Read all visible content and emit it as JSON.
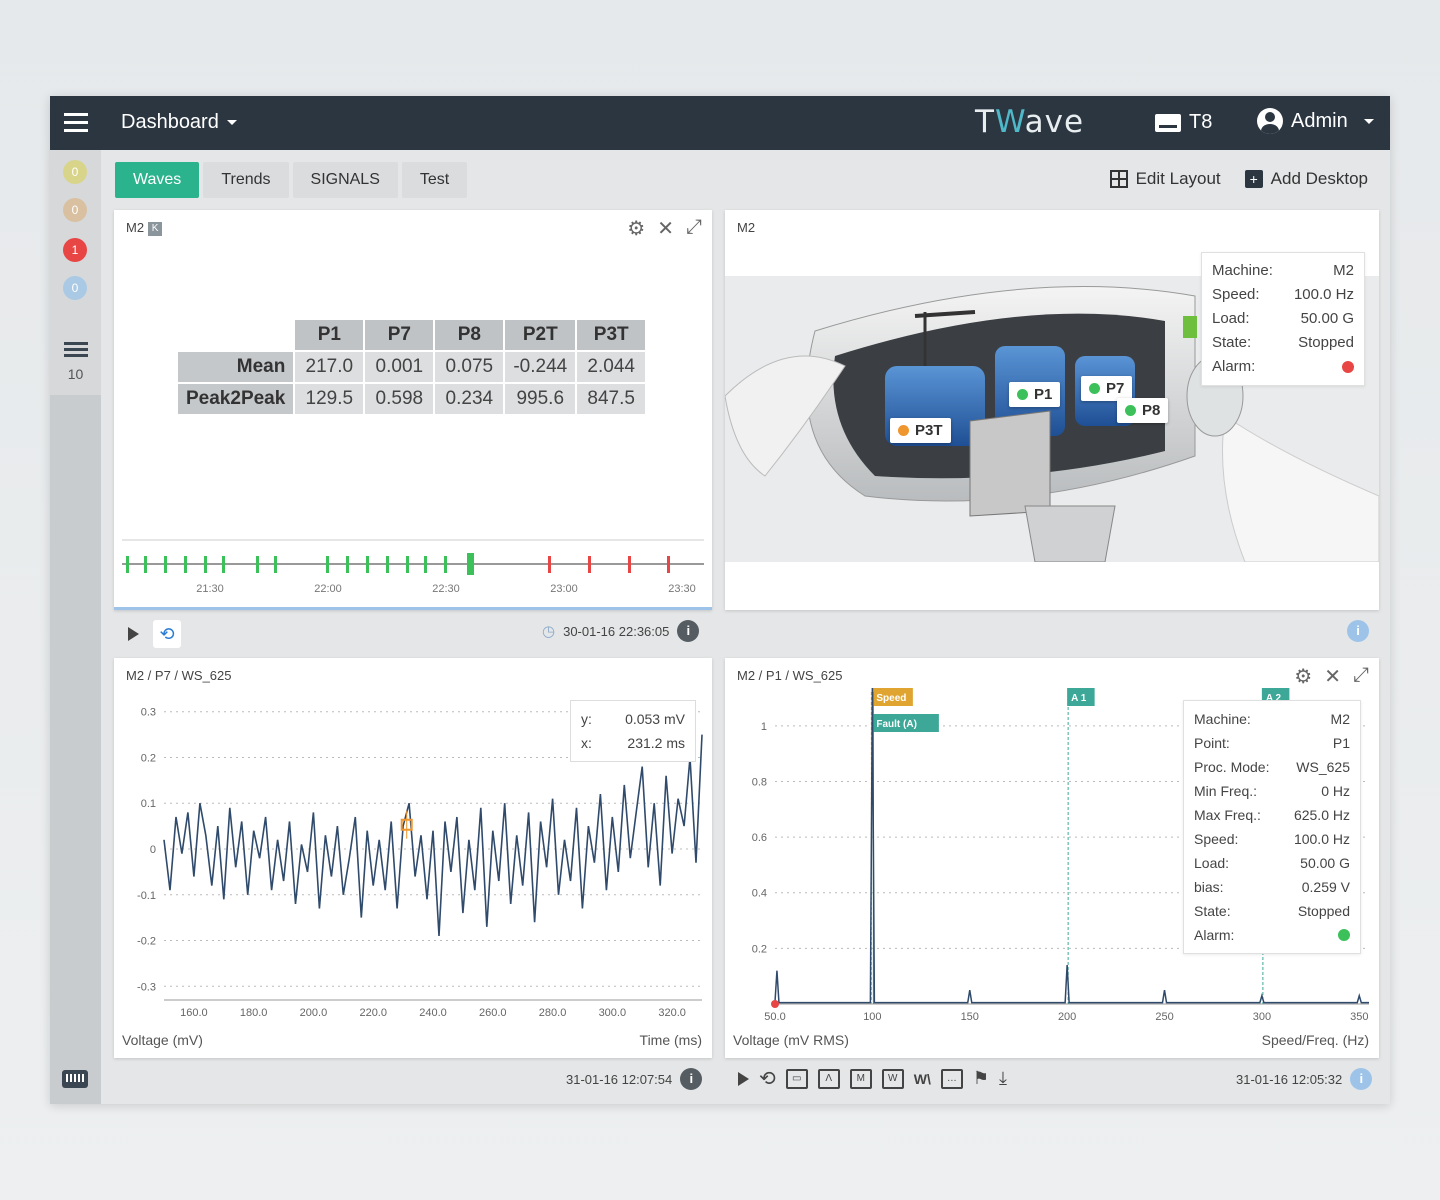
{
  "topbar": {
    "dashboard_label": "Dashboard",
    "logo_prefix": "T",
    "logo_w": "W",
    "logo_suffix": "ave",
    "device_label": "T8",
    "user_label": "Admin"
  },
  "leftbar": {
    "badges": [
      {
        "value": "0",
        "color": "#d8d58a"
      },
      {
        "value": "0",
        "color": "#d9c0a0"
      },
      {
        "value": "1",
        "color": "#e84545"
      },
      {
        "value": "0",
        "color": "#a9c9e4"
      }
    ],
    "list_count": "10"
  },
  "tabs": [
    "Waves",
    "Trends",
    "SIGNALS",
    "Test"
  ],
  "toolbar": {
    "edit_layout": "Edit Layout",
    "add_desktop": "Add Desktop"
  },
  "panel_stats": {
    "title": "M2",
    "badge": "K",
    "columns": [
      "P1",
      "P7",
      "P8",
      "P2T",
      "P3T"
    ],
    "rows": [
      {
        "label": "Mean",
        "values": [
          "217.0",
          "0.001",
          "0.075",
          "-0.244",
          "2.044"
        ]
      },
      {
        "label": "Peak2Peak",
        "values": [
          "129.5",
          "0.598",
          "0.234",
          "995.6",
          "847.5"
        ]
      }
    ],
    "timeline_labels": [
      "21:30",
      "22:00",
      "22:30",
      "23:00",
      "23:30"
    ],
    "timestamp": "30-01-16 22:36:05"
  },
  "panel_machine": {
    "title": "M2",
    "info": [
      {
        "k": "Machine:",
        "v": "M2"
      },
      {
        "k": "Speed:",
        "v": "100.0 Hz"
      },
      {
        "k": "Load:",
        "v": "50.00 G"
      },
      {
        "k": "State:",
        "v": "Stopped"
      },
      {
        "k": "Alarm:",
        "v": ""
      }
    ],
    "alarm_color": "#e84545",
    "points": [
      {
        "label": "P1",
        "color": "#3cc15a"
      },
      {
        "label": "P7",
        "color": "#3cc15a"
      },
      {
        "label": "P8",
        "color": "#3cc15a"
      },
      {
        "label": "P3T",
        "color": "#f0962e"
      }
    ]
  },
  "panel_wave": {
    "title": "M2 / P7 / WS_625",
    "cursor": {
      "y_label": "y:",
      "y_value": "0.053 mV",
      "x_label": "x:",
      "x_value": "231.2 ms"
    },
    "xlabel": "Time (ms)",
    "ylabel": "Voltage (mV)",
    "timestamp": "31-01-16 12:07:54"
  },
  "panel_spectrum": {
    "title": "M2 / P1 / WS_625",
    "markers": [
      "Speed",
      "Fault (A)",
      "A 1",
      "A 2"
    ],
    "info": [
      {
        "k": "Machine:",
        "v": "M2"
      },
      {
        "k": "Point:",
        "v": "P1"
      },
      {
        "k": "Proc. Mode:",
        "v": "WS_625"
      },
      {
        "k": "Min Freq.:",
        "v": "0 Hz"
      },
      {
        "k": "Max Freq.:",
        "v": "625.0 Hz"
      },
      {
        "k": "Speed:",
        "v": "100.0 Hz"
      },
      {
        "k": "Load:",
        "v": "50.00 G"
      },
      {
        "k": "bias:",
        "v": "0.259 V"
      },
      {
        "k": "State:",
        "v": "Stopped"
      },
      {
        "k": "Alarm:",
        "v": ""
      }
    ],
    "alarm_color": "#3cc15a",
    "xlabel": "Speed/Freq. (Hz)",
    "ylabel": "Voltage (mV RMS)",
    "timestamp": "31-01-16 12:05:32"
  },
  "chart_data": [
    {
      "type": "line",
      "title": "M2 / P7 / WS_625",
      "xlabel": "Time (ms)",
      "ylabel": "Voltage (mV)",
      "xlim": [
        150,
        330
      ],
      "ylim": [
        -0.33,
        0.33
      ],
      "x_ticks": [
        "160.0",
        "180.0",
        "200.0",
        "220.0",
        "240.0",
        "260.0",
        "280.0",
        "300.0",
        "320.0"
      ],
      "y_ticks": [
        "0.3",
        "0.2",
        "0.1",
        "0",
        "-0.1",
        "-0.2",
        "-0.3"
      ],
      "x": [
        150,
        152,
        154,
        156,
        158,
        160,
        162,
        164,
        166,
        168,
        170,
        172,
        174,
        176,
        178,
        180,
        182,
        184,
        186,
        188,
        190,
        192,
        194,
        196,
        198,
        200,
        202,
        204,
        206,
        208,
        210,
        212,
        214,
        216,
        218,
        220,
        222,
        224,
        226,
        228,
        230,
        232,
        234,
        236,
        238,
        240,
        242,
        244,
        246,
        248,
        250,
        252,
        254,
        256,
        258,
        260,
        262,
        264,
        266,
        268,
        270,
        272,
        274,
        276,
        278,
        280,
        282,
        284,
        286,
        288,
        290,
        292,
        294,
        296,
        298,
        300,
        302,
        304,
        306,
        308,
        310,
        312,
        314,
        316,
        318,
        320,
        322,
        324,
        326,
        328,
        330
      ],
      "y": [
        0.02,
        -0.09,
        0.07,
        -0.01,
        0.08,
        -0.06,
        0.1,
        0.03,
        -0.08,
        0.05,
        -0.11,
        0.09,
        -0.04,
        0.06,
        -0.1,
        0.04,
        -0.02,
        0.07,
        -0.09,
        0.02,
        -0.07,
        0.06,
        -0.12,
        0.01,
        -0.05,
        0.08,
        -0.13,
        0.03,
        -0.06,
        0.05,
        -0.1,
        -0.02,
        0.07,
        -0.15,
        0.04,
        -0.08,
        0.02,
        -0.09,
        0.06,
        -0.13,
        0.05,
        0.1,
        -0.06,
        0.03,
        -0.11,
        0.04,
        -0.19,
        0.06,
        -0.05,
        0.07,
        -0.14,
        0.02,
        -0.09,
        0.09,
        -0.17,
        0.04,
        -0.07,
        0.1,
        -0.12,
        0.03,
        -0.08,
        0.08,
        -0.16,
        0.06,
        -0.04,
        0.11,
        -0.1,
        0.02,
        -0.07,
        0.09,
        -0.13,
        0.05,
        -0.03,
        0.12,
        -0.09,
        0.07,
        -0.05,
        0.14,
        -0.02,
        0.08,
        0.18,
        -0.04,
        0.1,
        -0.08,
        0.16,
        -0.01,
        0.11,
        0.05,
        0.2,
        -0.03,
        0.25
      ],
      "cursor": {
        "x": 231.2,
        "y": 0.053
      },
      "series_color": "#2f4a6b"
    },
    {
      "type": "line",
      "title": "M2 / P1 / WS_625",
      "xlabel": "Speed/Freq. (Hz)",
      "ylabel": "Voltage (mV RMS)",
      "xlim": [
        50,
        355
      ],
      "ylim": [
        0,
        1.1
      ],
      "x_ticks": [
        "50.0",
        "100",
        "150",
        "200",
        "250",
        "300",
        "350"
      ],
      "y_ticks": [
        "1",
        "0.8",
        "0.6",
        "0.4",
        "0.2"
      ],
      "peaks": [
        {
          "x": 51,
          "y": 0.12
        },
        {
          "x": 100,
          "y": 1.15
        },
        {
          "x": 150,
          "y": 0.05
        },
        {
          "x": 200,
          "y": 0.14
        },
        {
          "x": 250,
          "y": 0.05
        },
        {
          "x": 300,
          "y": 0.03
        },
        {
          "x": 350,
          "y": 0.03
        }
      ],
      "markers": [
        {
          "label": "Speed",
          "x": 100,
          "color": "#e0a531"
        },
        {
          "label": "Fault (A)",
          "x": 100,
          "color": "#3da897"
        },
        {
          "label": "A 1",
          "x": 200,
          "color": "#3da897"
        },
        {
          "label": "A 2",
          "x": 300,
          "color": "#3da897"
        }
      ],
      "series_color": "#2f4a6b"
    }
  ]
}
